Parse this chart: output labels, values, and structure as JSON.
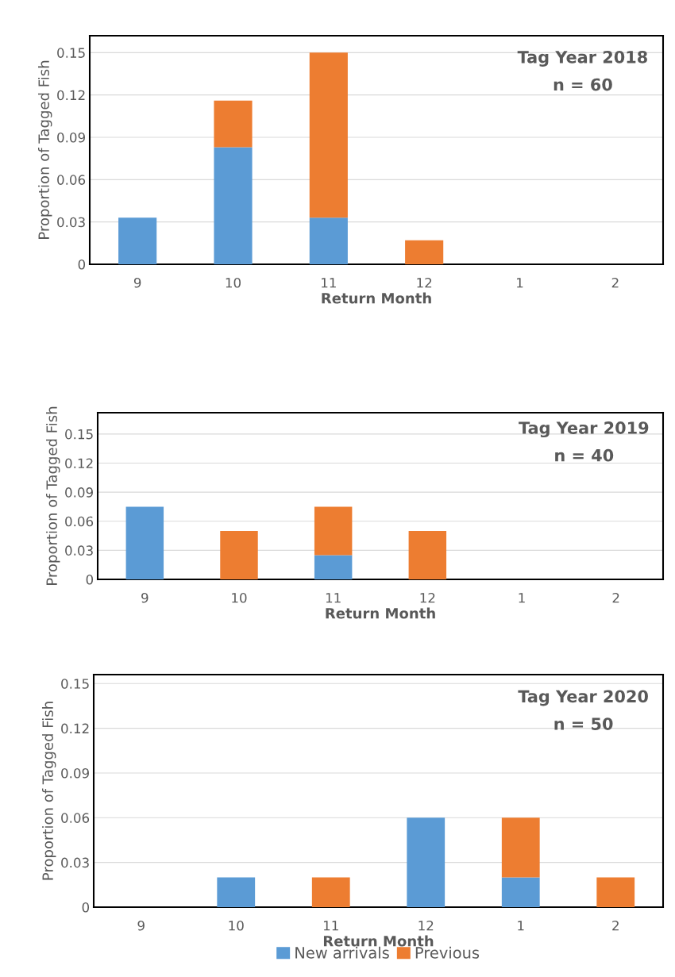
{
  "chart_data": [
    {
      "type": "bar",
      "stacked": true,
      "xlabel": "Return Month",
      "ylabel": "Proportion of Tagged Fish",
      "categories": [
        "9",
        "10",
        "11",
        "12",
        "1",
        "2"
      ],
      "series": [
        {
          "color": "#5b9bd5",
          "values": [
            0.033,
            0.083,
            0.033,
            0,
            0,
            0
          ]
        },
        {
          "color": "#ed7d31",
          "values": [
            0,
            0.033,
            0.117,
            0.017,
            0,
            0
          ]
        }
      ],
      "ylim": [
        0,
        0.162
      ],
      "yticks": [
        0,
        0.03,
        0.06,
        0.09,
        0.12,
        0.15
      ],
      "grid": "y",
      "annotations": [
        "Tag Year 2018",
        "n = 60"
      ]
    },
    {
      "type": "bar",
      "stacked": true,
      "xlabel": "Return Month",
      "ylabel": "Proportion of Tagged Fish",
      "categories": [
        "9",
        "10",
        "11",
        "12",
        "1",
        "2"
      ],
      "series": [
        {
          "color": "#5b9bd5",
          "values": [
            0.075,
            0,
            0.025,
            0,
            0,
            0
          ]
        },
        {
          "color": "#ed7d31",
          "values": [
            0,
            0.05,
            0.05,
            0.05,
            0,
            0
          ]
        }
      ],
      "ylim": [
        0,
        0.172
      ],
      "yticks": [
        0,
        0.03,
        0.06,
        0.09,
        0.12,
        0.15
      ],
      "grid": "y",
      "annotations": [
        "Tag Year 2019",
        "n = 40"
      ]
    },
    {
      "type": "bar",
      "stacked": true,
      "xlabel": "Return Month",
      "ylabel": "Proportion of Tagged Fish",
      "categories": [
        "9",
        "10",
        "11",
        "12",
        "1",
        "2"
      ],
      "series": [
        {
          "name": "New arrivals",
          "color": "#5b9bd5",
          "values": [
            0,
            0.02,
            0,
            0.06,
            0.02,
            0
          ]
        },
        {
          "name": "Previous",
          "color": "#ed7d31",
          "values": [
            0,
            0,
            0.02,
            0,
            0.04,
            0.02
          ]
        }
      ],
      "ylim": [
        0,
        0.156
      ],
      "yticks": [
        0,
        0.03,
        0.06,
        0.09,
        0.12,
        0.15
      ],
      "grid": "y",
      "legend": "bottom",
      "annotations": [
        "Tag Year 2020",
        "n = 50"
      ]
    }
  ]
}
